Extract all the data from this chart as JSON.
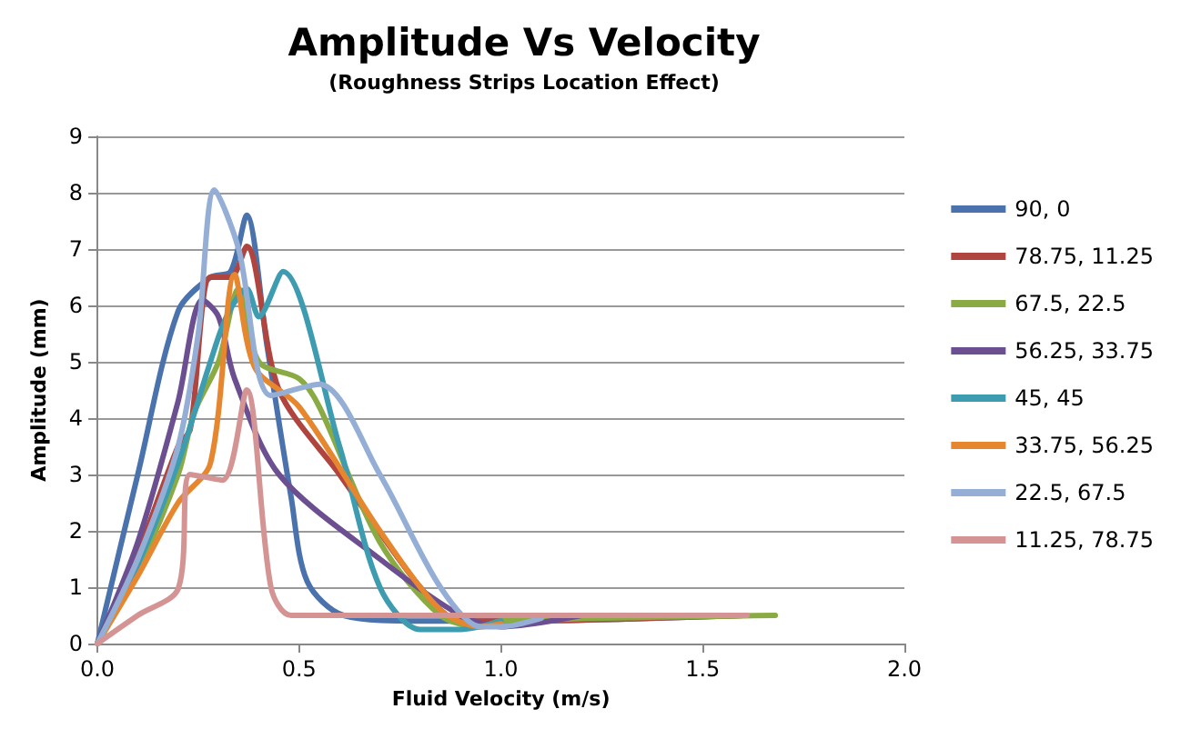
{
  "chart_data": {
    "type": "line",
    "title": "Amplitude Vs Velocity",
    "subtitle": "(Roughness Strips Location Effect)",
    "xlabel": "Fluid Velocity (m/s)",
    "ylabel": "Amplitude (mm)",
    "xlim": [
      0,
      2
    ],
    "xticks": [
      {
        "value": 0,
        "label": "0.0"
      },
      {
        "value": 0.5,
        "label": "0.5"
      },
      {
        "value": 1,
        "label": "1.0"
      },
      {
        "value": 1.5,
        "label": "1.5"
      },
      {
        "value": 2,
        "label": "2.0"
      }
    ],
    "ylim": [
      0,
      9
    ],
    "yticks": [
      0,
      1,
      2,
      3,
      4,
      5,
      6,
      7,
      8,
      9
    ],
    "grid": "y",
    "legend": "right",
    "marker": "none",
    "line_style": "solid",
    "series": [
      {
        "name": "90, 0",
        "color": "#4a72ac",
        "x": [
          0,
          0.1,
          0.2,
          0.28,
          0.33,
          0.37,
          0.42,
          0.48,
          0.52,
          0.61,
          0.8,
          1.0,
          1.6
        ],
        "values": [
          0,
          3.0,
          5.9,
          6.5,
          6.6,
          7.6,
          5.3,
          2.6,
          1.1,
          0.5,
          0.4,
          0.4,
          0.5
        ]
      },
      {
        "name": "78.75, 11.25",
        "color": "#b0443f",
        "x": [
          0,
          0.1,
          0.2,
          0.23,
          0.28,
          0.33,
          0.37,
          0.45,
          0.6,
          0.8,
          0.9,
          1.0,
          1.6
        ],
        "values": [
          0,
          1.6,
          3.5,
          3.8,
          6.5,
          6.5,
          7.05,
          4.5,
          3.0,
          1.0,
          0.4,
          0.4,
          0.5
        ]
      },
      {
        "name": "67.5, 22.5",
        "color": "#8aab44",
        "x": [
          0,
          0.1,
          0.2,
          0.24,
          0.3,
          0.35,
          0.4,
          0.5,
          0.55,
          0.7,
          0.85,
          0.95,
          1.0,
          1.68
        ],
        "values": [
          0,
          1.3,
          3.0,
          4.1,
          5.0,
          6.3,
          5.0,
          4.7,
          4.2,
          1.8,
          0.5,
          0.3,
          0.4,
          0.5
        ]
      },
      {
        "name": "56.25, 33.75",
        "color": "#6c4f91",
        "x": [
          0,
          0.1,
          0.2,
          0.26,
          0.3,
          0.34,
          0.45,
          0.7,
          0.9,
          1.0,
          1.2
        ],
        "values": [
          0,
          1.8,
          4.3,
          6.1,
          5.8,
          4.7,
          3.0,
          1.5,
          0.5,
          0.3,
          0.5
        ]
      },
      {
        "name": "45, 45",
        "color": "#3e9cb0",
        "x": [
          0,
          0.1,
          0.2,
          0.28,
          0.32,
          0.37,
          0.4,
          0.46,
          0.6,
          0.7,
          0.8,
          0.9,
          1.0
        ],
        "values": [
          0,
          1.4,
          3.2,
          5.0,
          5.8,
          6.3,
          5.8,
          6.6,
          3.5,
          1.0,
          0.25,
          0.25,
          0.4
        ]
      },
      {
        "name": "33.75, 56.25",
        "color": "#e6862e",
        "x": [
          0,
          0.1,
          0.2,
          0.28,
          0.34,
          0.39,
          0.5,
          0.7,
          0.85,
          0.95,
          1.0
        ],
        "values": [
          0,
          1.2,
          2.5,
          3.2,
          6.55,
          4.9,
          4.2,
          2.0,
          0.6,
          0.3,
          0.35
        ]
      },
      {
        "name": "22.5, 67.5",
        "color": "#94aed6",
        "x": [
          0,
          0.1,
          0.2,
          0.25,
          0.29,
          0.35,
          0.43,
          0.55,
          0.7,
          0.85,
          0.95,
          1.0,
          1.1
        ],
        "values": [
          0,
          1.5,
          3.5,
          5.5,
          8.05,
          7.0,
          4.4,
          4.6,
          3.0,
          1.0,
          0.3,
          0.3,
          0.45
        ]
      },
      {
        "name": "11.25, 78.75",
        "color": "#d49493",
        "x": [
          0,
          0.1,
          0.2,
          0.23,
          0.31,
          0.37,
          0.43,
          0.48,
          1.0,
          1.61
        ],
        "values": [
          0,
          0.5,
          0.97,
          3.0,
          2.9,
          4.5,
          1.0,
          0.5,
          0.5,
          0.5
        ]
      }
    ]
  }
}
